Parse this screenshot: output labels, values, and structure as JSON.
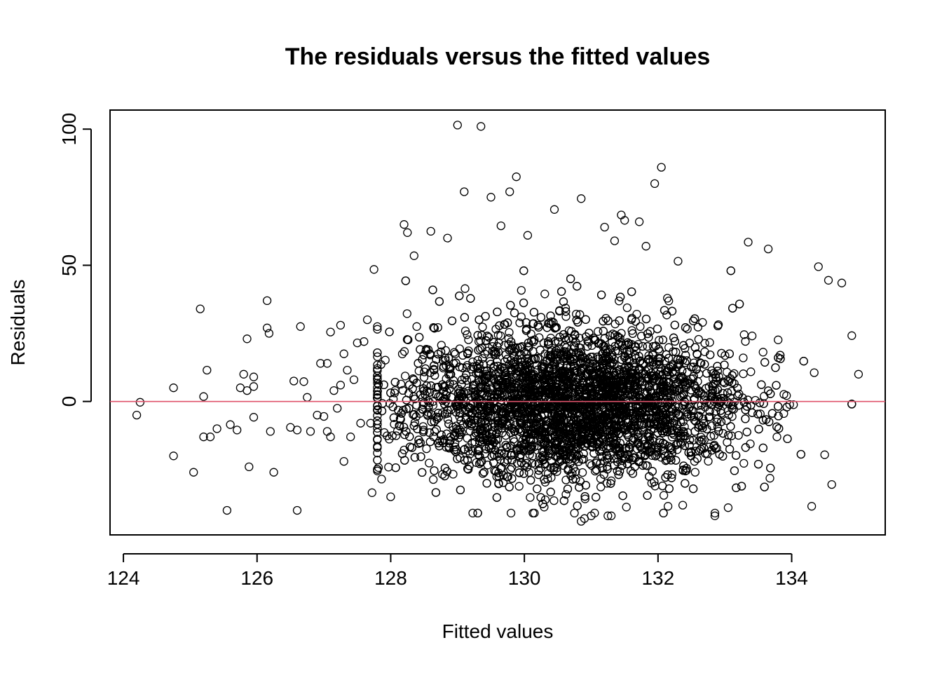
{
  "chart_data": {
    "type": "scatter",
    "title": "The residuals versus the fitted values",
    "xlabel": "Fitted values",
    "ylabel": "Residuals",
    "xlim": [
      123.8,
      135.4
    ],
    "ylim": [
      -49,
      107
    ],
    "xticks": [
      124,
      126,
      128,
      130,
      132,
      134
    ],
    "yticks": [
      0,
      50,
      100
    ],
    "hline": {
      "y": 0,
      "color": "#df536b"
    },
    "marker": "open-circle",
    "point_color": "#000000",
    "grid": false,
    "legend": "none",
    "n_points": 5000,
    "points": [
      [
        124.2,
        -5
      ],
      [
        124.25,
        -0.3
      ],
      [
        124.75,
        5
      ],
      [
        124.75,
        -20
      ],
      [
        125.05,
        -26
      ],
      [
        125.15,
        34
      ],
      [
        125.2,
        1.8
      ],
      [
        125.2,
        -13
      ],
      [
        125.25,
        11.5
      ],
      [
        125.3,
        -13
      ],
      [
        125.4,
        -10
      ],
      [
        125.55,
        -40
      ],
      [
        125.6,
        -8.5
      ],
      [
        125.7,
        -10.5
      ],
      [
        125.75,
        5
      ],
      [
        125.8,
        10
      ],
      [
        125.85,
        23
      ],
      [
        125.85,
        4
      ],
      [
        125.88,
        -24
      ],
      [
        125.95,
        -5.8
      ],
      [
        125.95,
        5.5
      ],
      [
        125.95,
        9
      ],
      [
        126.15,
        37
      ],
      [
        126.15,
        27
      ],
      [
        126.18,
        25
      ],
      [
        126.2,
        -11
      ],
      [
        126.25,
        -26
      ],
      [
        126.5,
        -9.5
      ],
      [
        126.55,
        7.5
      ],
      [
        126.6,
        -10.5
      ],
      [
        126.6,
        -40
      ],
      [
        126.65,
        27.5
      ],
      [
        126.7,
        7.3
      ],
      [
        126.75,
        1.5
      ],
      [
        126.8,
        -11
      ],
      [
        126.9,
        -5
      ],
      [
        126.95,
        14
      ],
      [
        127.0,
        -5.5
      ],
      [
        127.05,
        -11
      ],
      [
        127.05,
        14
      ],
      [
        127.1,
        -13
      ],
      [
        127.1,
        25.5
      ],
      [
        127.15,
        4
      ],
      [
        127.2,
        -2.5
      ],
      [
        127.25,
        28
      ],
      [
        127.25,
        6
      ],
      [
        127.3,
        -22
      ],
      [
        127.3,
        17.5
      ],
      [
        127.35,
        11.5
      ],
      [
        127.4,
        -13
      ],
      [
        127.45,
        8
      ],
      [
        127.5,
        21.5
      ],
      [
        127.55,
        -8
      ],
      [
        127.6,
        22
      ],
      [
        127.65,
        30
      ],
      [
        127.7,
        -8
      ],
      [
        127.72,
        -33.5
      ],
      [
        127.75,
        48.5
      ],
      [
        127.8,
        26.5
      ],
      [
        128.2,
        65
      ],
      [
        128.25,
        62
      ],
      [
        128.35,
        53.5
      ],
      [
        128.6,
        62.5
      ],
      [
        128.85,
        60
      ],
      [
        129.0,
        101.5
      ],
      [
        129.1,
        77
      ],
      [
        129.35,
        101
      ],
      [
        129.5,
        75
      ],
      [
        129.65,
        64.5
      ],
      [
        129.78,
        77
      ],
      [
        129.88,
        82.5
      ],
      [
        130.05,
        61
      ],
      [
        130.45,
        70.5
      ],
      [
        130.85,
        74.5
      ],
      [
        131.2,
        64
      ],
      [
        131.35,
        59
      ],
      [
        131.45,
        68.5
      ],
      [
        131.5,
        66.5
      ],
      [
        131.72,
        66
      ],
      [
        131.82,
        57
      ],
      [
        131.95,
        80
      ],
      [
        132.05,
        86
      ],
      [
        132.3,
        51.5
      ],
      [
        133.35,
        58.5
      ],
      [
        133.65,
        56
      ],
      [
        134.4,
        49.5
      ],
      [
        134.55,
        44.5
      ],
      [
        134.75,
        43.5
      ],
      [
        130.75,
        -41
      ],
      [
        130.85,
        -44
      ],
      [
        130.9,
        -43
      ],
      [
        131.0,
        -42
      ],
      [
        131.25,
        -42
      ],
      [
        131.3,
        -42
      ],
      [
        129.8,
        -41
      ],
      [
        130.15,
        -41
      ],
      [
        132.15,
        -38.5
      ],
      [
        132.85,
        -42
      ],
      [
        133.05,
        -39
      ],
      [
        134.3,
        -38.5
      ],
      [
        128.0,
        -35
      ],
      [
        134.6,
        -30.5
      ],
      [
        135.0,
        10
      ],
      [
        134.9,
        -1
      ]
    ]
  }
}
